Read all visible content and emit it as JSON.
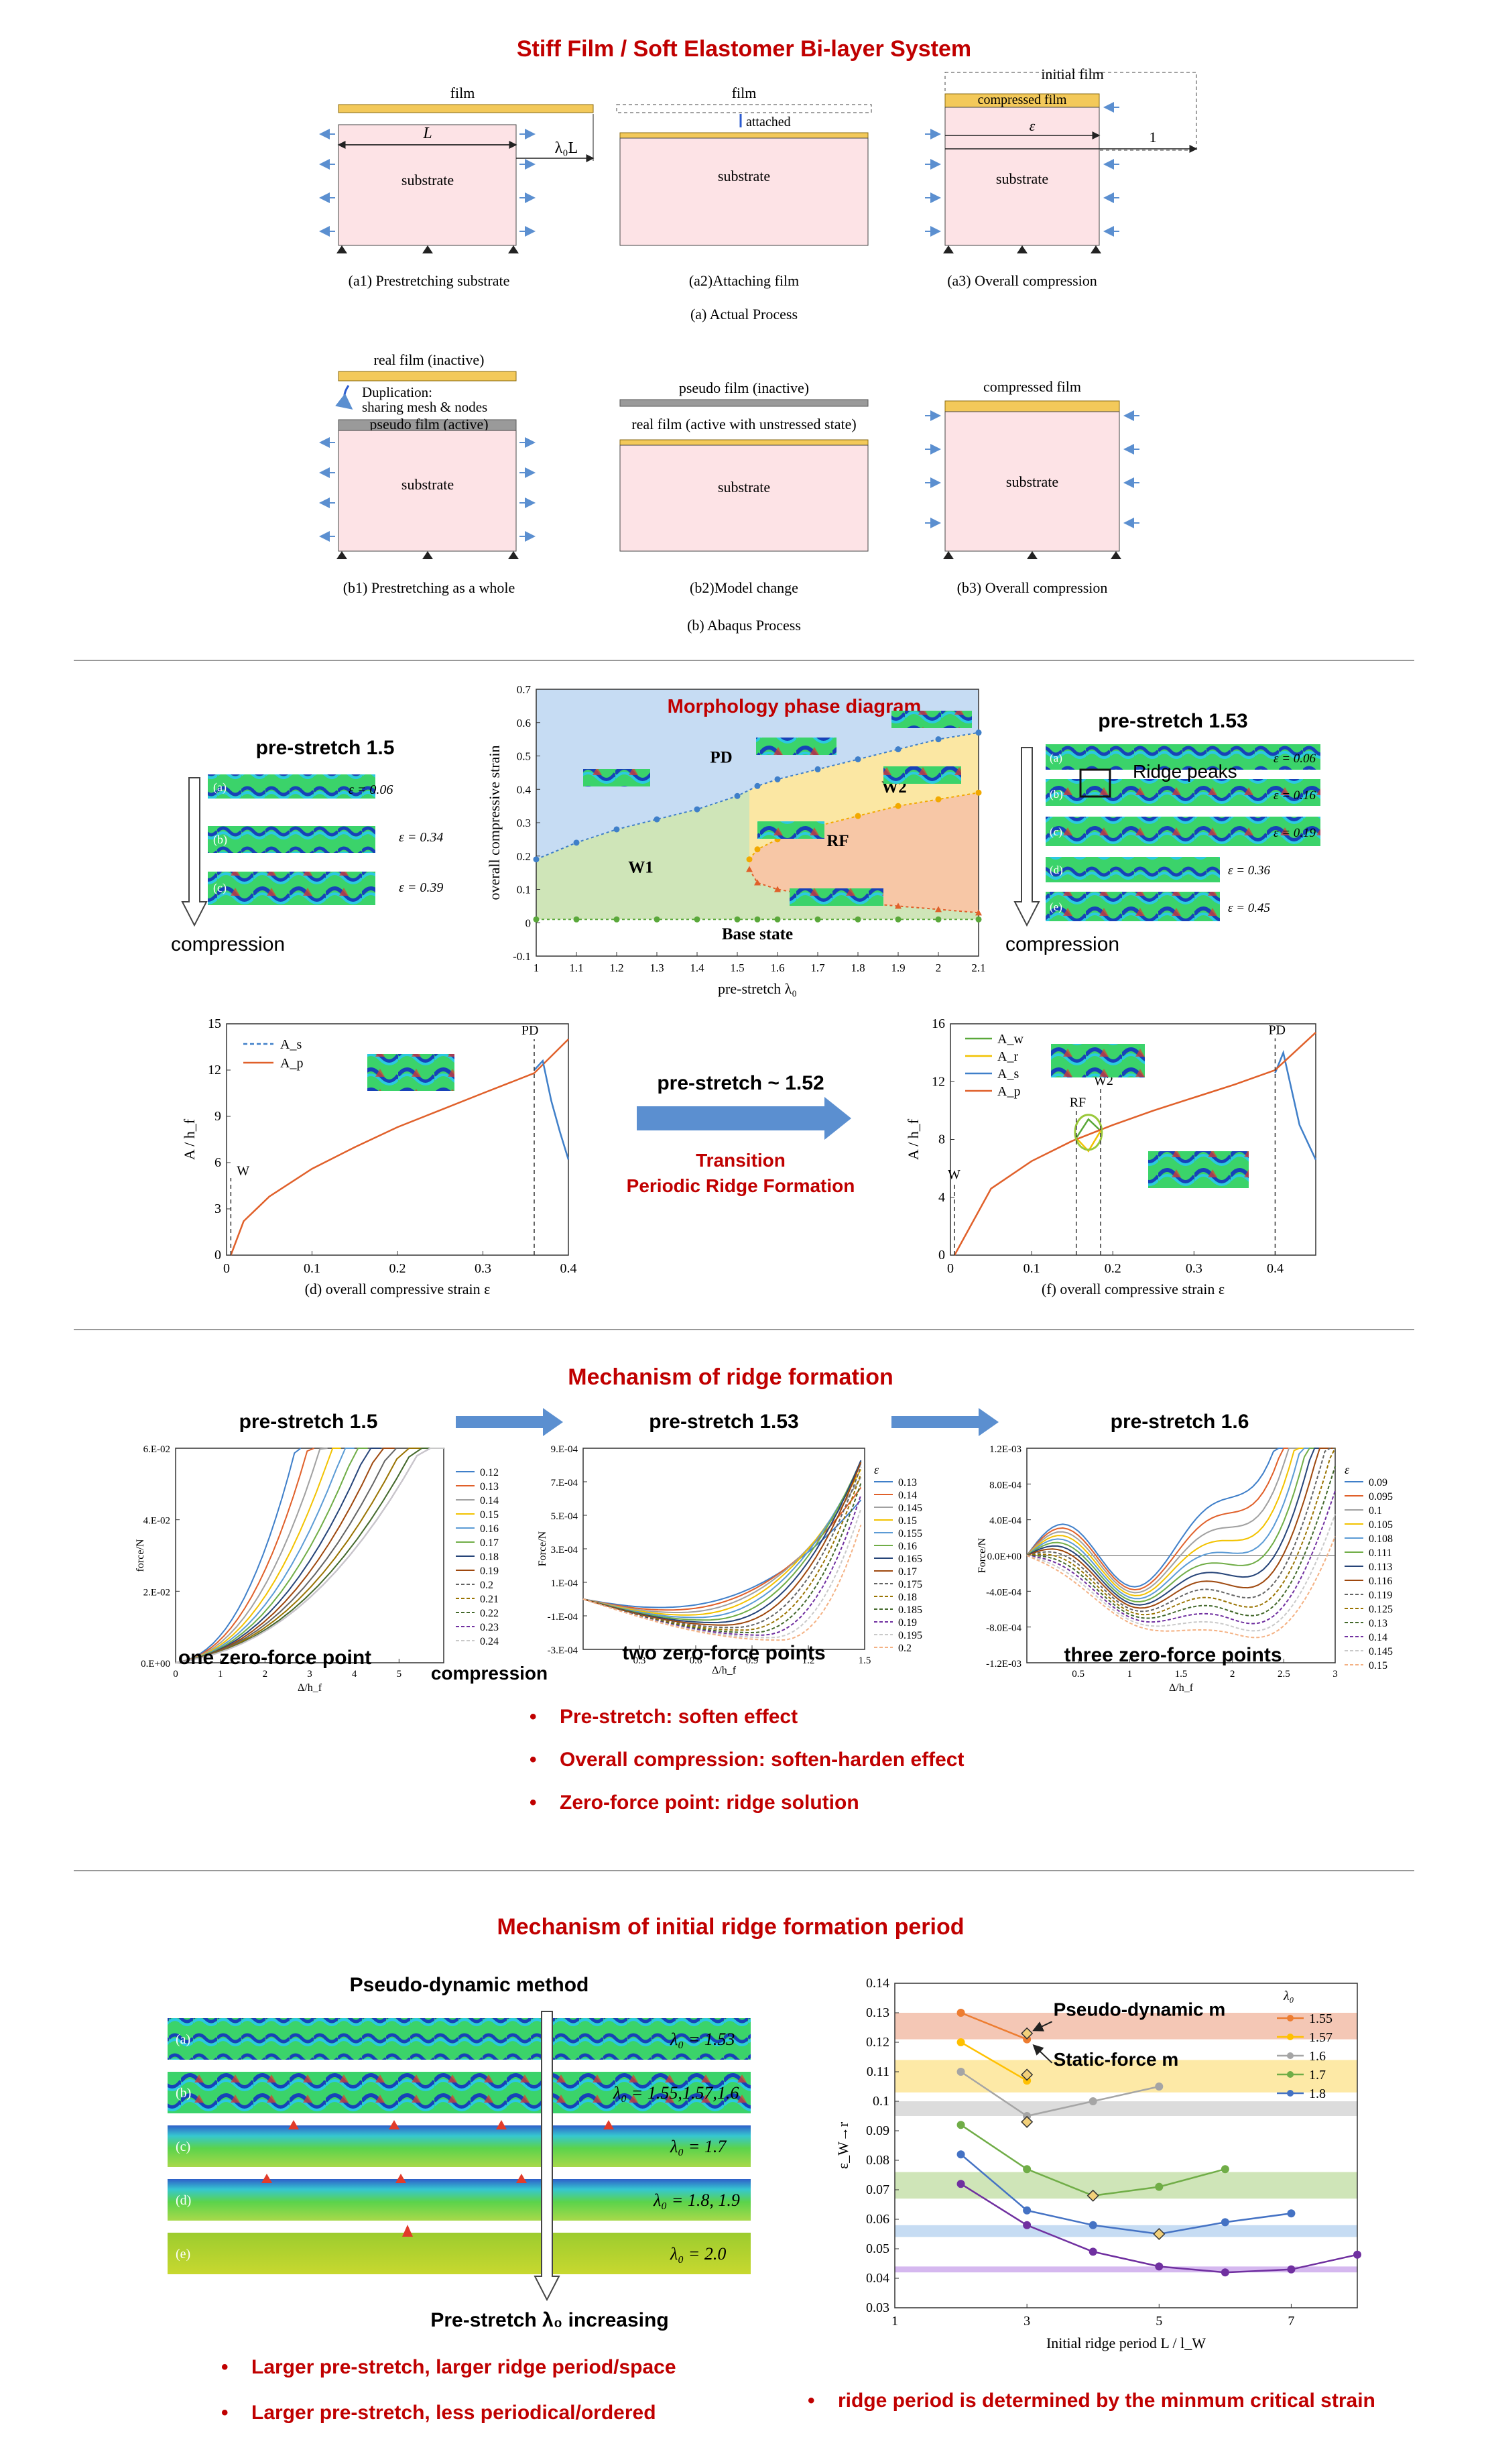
{
  "colors": {
    "title_red": "#c00000",
    "substrate_fill": "#fde3e6",
    "film_gold": "#f3c95a",
    "arrow_blue": "#5b8fd0",
    "phase_blue": "#c6dcf3",
    "phase_yellow": "#fbe7a3",
    "phase_green": "#cfe5b8",
    "phase_orange": "#f7c7a6",
    "curve_orange": "#e0602a",
    "curve_blue": "#3f7fc9",
    "purple": "#7a3fb5"
  },
  "section1": {
    "title": "Stiff Film / Soft Elastomer Bi-layer System",
    "a1": {
      "film": "film",
      "L": "L",
      "lambda": "λ₀L",
      "substrate": "substrate",
      "caption": "(a1) Prestretching substrate"
    },
    "a2": {
      "film": "film",
      "attached": "attached",
      "substrate": "substrate",
      "caption": "(a2)Attaching film"
    },
    "a3": {
      "initial": "initial film",
      "compressed": "compressed film",
      "eps": "ε",
      "one": "1",
      "substrate": "substrate",
      "caption": "(a3) Overall compression"
    },
    "caption_a": "(a) Actual Process",
    "b1": {
      "real": "real film (inactive)",
      "dup1": "Duplication:",
      "dup2": "sharing mesh & nodes",
      "pseudo": "pseudo  film (active)",
      "substrate": "substrate",
      "caption": "(b1) Prestretching as a whole"
    },
    "b2": {
      "pseudo": "pseudo  film (inactive)",
      "real": "real film (active with unstressed state)",
      "substrate": "substrate",
      "caption": "(b2)Model change"
    },
    "b3": {
      "compressed": "compressed film",
      "substrate": "substrate",
      "caption": "(b3) Overall compression"
    },
    "caption_b": "(b) Abaqus Process"
  },
  "section2": {
    "left_title": "pre-stretch 1.5",
    "left_labels": [
      "(a)",
      "(b)",
      "(c)"
    ],
    "left_eps": [
      "ε = 0.06",
      "ε = 0.34",
      "ε = 0.39"
    ],
    "compression": "compression",
    "right_title": "pre-stretch 1.53",
    "right_labels": [
      "(a)",
      "(b)",
      "(c)",
      "(d)",
      "(e)"
    ],
    "right_eps": [
      "ε = 0.06",
      "ε = 0.16",
      "ε = 0.19",
      "ε = 0.36",
      "ε = 0.45"
    ],
    "ridge_peaks": "Ridge peaks",
    "transition_top": "pre-stretch ~ 1.52",
    "transition_red1": "Transition",
    "transition_red2": "Periodic Ridge Formation"
  },
  "section3": {
    "title": "Mechanism of ridge formation",
    "panel_titles": [
      "pre-stretch 1.5",
      "pre-stretch 1.53",
      "pre-stretch 1.6"
    ],
    "captions": [
      "one zero-force point",
      "two zero-force points",
      "three zero-force points"
    ],
    "compression": "compression",
    "bullets": [
      "Pre-stretch: soften effect",
      "Overall compression: soften-harden effect",
      "Zero-force point: ridge solution"
    ]
  },
  "section4": {
    "title": "Mechanism of initial ridge formation period",
    "pd_title": "Pseudo-dynamic method",
    "strip_labels": [
      "(a)",
      "(b)",
      "(c)",
      "(d)",
      "(e)"
    ],
    "strip_lambdas": [
      "λ₀ = 1.53",
      "λ₀ = 1.55,1.57,1.6",
      "λ₀ = 1.7",
      "λ₀ = 1.8, 1.9",
      "λ₀ = 2.0"
    ],
    "increasing": "Pre-stretch λ₀ increasing",
    "bullets_left": [
      "Larger pre-stretch, larger ridge period/space",
      "Larger pre-stretch, less periodical/ordered"
    ],
    "bullet_right": "ridge period is determined by the minmum critical strain"
  },
  "chart_data": [
    {
      "id": "phase_diagram",
      "type": "scatter",
      "title": "Morphology phase diagram",
      "xlabel": "pre-stretch λ₀",
      "ylabel": "overall compressive strain",
      "xlim": [
        1,
        2.1
      ],
      "ylim": [
        -0.1,
        0.7
      ],
      "xticks": [
        "1",
        "1.1",
        "1.2",
        "1.3",
        "1.4",
        "1.5",
        "1.6",
        "1.7",
        "1.8",
        "1.9",
        "2",
        "2.1"
      ],
      "yticks": [
        "-0.1",
        "0",
        "0.1",
        "0.2",
        "0.3",
        "0.4",
        "0.5",
        "0.6",
        "0.7"
      ],
      "regions": [
        "PD",
        "W1",
        "W2",
        "RF",
        "Base state"
      ],
      "series": [
        {
          "name": "PD boundary",
          "x": [
            1.0,
            1.1,
            1.2,
            1.3,
            1.4,
            1.5,
            1.55,
            1.6,
            1.7,
            1.8,
            1.9,
            2.0,
            2.1
          ],
          "y": [
            0.19,
            0.24,
            0.28,
            0.31,
            0.34,
            0.38,
            0.41,
            0.43,
            0.46,
            0.49,
            0.52,
            0.55,
            0.57
          ]
        },
        {
          "name": "W2 lower",
          "x": [
            1.53,
            1.55,
            1.6,
            1.7,
            1.8,
            1.9,
            2.0,
            2.1
          ],
          "y": [
            0.19,
            0.22,
            0.25,
            0.29,
            0.32,
            0.35,
            0.37,
            0.39
          ]
        },
        {
          "name": "RF lower",
          "x": [
            1.53,
            1.55,
            1.6,
            1.7,
            1.8,
            1.9,
            2.0,
            2.1
          ],
          "y": [
            0.16,
            0.12,
            0.1,
            0.08,
            0.06,
            0.05,
            0.04,
            0.03
          ]
        },
        {
          "name": "Base",
          "x": [
            1.0,
            1.1,
            1.2,
            1.3,
            1.4,
            1.5,
            1.55,
            1.6,
            1.7,
            1.8,
            1.9,
            2.0,
            2.1
          ],
          "y": [
            0.01,
            0.01,
            0.01,
            0.01,
            0.01,
            0.01,
            0.01,
            0.01,
            0.01,
            0.01,
            0.01,
            0.01,
            0.01
          ]
        }
      ]
    },
    {
      "id": "amplitude_d",
      "type": "line",
      "xlabel": "(d) overall compressive strain ε",
      "ylabel": "A / h_f",
      "xlim": [
        0,
        0.4
      ],
      "ylim": [
        0,
        15
      ],
      "xticks": [
        "0",
        "0.1",
        "0.2",
        "0.3",
        "0.4"
      ],
      "yticks": [
        "0",
        "3",
        "6",
        "9",
        "12",
        "15"
      ],
      "annotations": [
        "W",
        "PD"
      ],
      "series": [
        {
          "name": "A_s",
          "x": [
            0.36,
            0.37,
            0.38,
            0.39,
            0.4
          ],
          "y": [
            12.0,
            12.6,
            10.0,
            8.0,
            6.2
          ]
        },
        {
          "name": "A_p",
          "x": [
            0.005,
            0.02,
            0.05,
            0.1,
            0.15,
            0.2,
            0.25,
            0.3,
            0.36,
            0.4
          ],
          "y": [
            0.0,
            2.2,
            3.8,
            5.6,
            7.0,
            8.3,
            9.4,
            10.5,
            11.8,
            14.0
          ]
        }
      ]
    },
    {
      "id": "amplitude_f",
      "type": "line",
      "xlabel": "(f) overall compressive strain ε",
      "ylabel": "A / h_f",
      "xlim": [
        0,
        0.45
      ],
      "ylim": [
        0,
        16
      ],
      "xticks": [
        "0",
        "0.1",
        "0.2",
        "0.3",
        "0.4"
      ],
      "yticks": [
        "0",
        "4",
        "8",
        "12",
        "16"
      ],
      "annotations": [
        "W",
        "RF",
        "W2",
        "PD"
      ],
      "series": [
        {
          "name": "A_w",
          "x": [
            0.155,
            0.17,
            0.185
          ],
          "y": [
            8.1,
            9.4,
            8.6
          ]
        },
        {
          "name": "A_r",
          "x": [
            0.155,
            0.17,
            0.185
          ],
          "y": [
            8.1,
            7.2,
            8.6
          ]
        },
        {
          "name": "A_s",
          "x": [
            0.4,
            0.41,
            0.43,
            0.45
          ],
          "y": [
            12.6,
            14.0,
            9.0,
            6.6
          ]
        },
        {
          "name": "A_p",
          "x": [
            0.005,
            0.05,
            0.1,
            0.15,
            0.2,
            0.25,
            0.3,
            0.35,
            0.4,
            0.45
          ],
          "y": [
            0.0,
            4.6,
            6.5,
            7.9,
            9.0,
            10.0,
            10.9,
            11.8,
            12.8,
            15.4
          ]
        }
      ]
    },
    {
      "id": "force_1_5",
      "type": "line",
      "title": "pre-stretch 1.5",
      "xlabel": "Δ/h_f",
      "ylabel": "force/N",
      "xlim": [
        0,
        6
      ],
      "ylim": [
        0,
        0.06
      ],
      "xticks": [
        "0",
        "1",
        "2",
        "3",
        "4",
        "5"
      ],
      "yticks": [
        "0.E+00",
        "2.E-02",
        "4.E-02",
        "6.E-02"
      ],
      "legend_title": "",
      "series": [
        {
          "name": "0.12",
          "end_x": 2.8
        },
        {
          "name": "0.13",
          "end_x": 3.1
        },
        {
          "name": "0.14",
          "end_x": 3.4
        },
        {
          "name": "0.15",
          "end_x": 3.7
        },
        {
          "name": "0.16",
          "end_x": 4.0
        },
        {
          "name": "0.17",
          "end_x": 4.3
        },
        {
          "name": "0.18",
          "end_x": 4.6
        },
        {
          "name": "0.19",
          "end_x": 4.9
        },
        {
          "name": "0.2",
          "end_x": 5.2
        },
        {
          "name": "0.21",
          "end_x": 5.5
        },
        {
          "name": "0.22",
          "end_x": 5.8
        },
        {
          "name": "0.23",
          "end_x": 6.0
        },
        {
          "name": "0.24",
          "end_x": 6.0
        }
      ]
    },
    {
      "id": "force_1_53",
      "type": "line",
      "title": "pre-stretch 1.53",
      "xlabel": "Δ/h_f",
      "ylabel": "Force/N",
      "xlim": [
        0,
        1.5
      ],
      "ylim": [
        -0.0003,
        0.0009
      ],
      "xticks": [
        "0.3",
        "0.6",
        "0.9",
        "1.2",
        "1.5"
      ],
      "yticks": [
        "-3.E-04",
        "-1.E-04",
        "1.E-04",
        "3.E-04",
        "5.E-04",
        "7.E-04",
        "9.E-04"
      ],
      "legend_title": "ε",
      "series": [
        {
          "name": "0.13"
        },
        {
          "name": "0.14"
        },
        {
          "name": "0.145"
        },
        {
          "name": "0.15"
        },
        {
          "name": "0.155"
        },
        {
          "name": "0.16"
        },
        {
          "name": "0.165"
        },
        {
          "name": "0.17"
        },
        {
          "name": "0.175"
        },
        {
          "name": "0.18"
        },
        {
          "name": "0.185"
        },
        {
          "name": "0.19"
        },
        {
          "name": "0.195"
        },
        {
          "name": "0.2"
        }
      ]
    },
    {
      "id": "force_1_6",
      "type": "line",
      "title": "pre-stretch 1.6",
      "xlabel": "Δ/h_f",
      "ylabel": "Force/N",
      "xlim": [
        0,
        3
      ],
      "ylim": [
        -0.0012,
        0.0012
      ],
      "xticks": [
        "0.5",
        "1",
        "1.5",
        "2",
        "2.5",
        "3"
      ],
      "yticks": [
        "-1.2E-03",
        "-8.0E-04",
        "-4.0E-04",
        "0.0E+00",
        "4.0E-04",
        "8.0E-04",
        "1.2E-03"
      ],
      "legend_title": "ε",
      "series": [
        {
          "name": "0.09"
        },
        {
          "name": "0.095"
        },
        {
          "name": "0.1"
        },
        {
          "name": "0.105"
        },
        {
          "name": "0.108"
        },
        {
          "name": "0.111"
        },
        {
          "name": "0.113"
        },
        {
          "name": "0.116"
        },
        {
          "name": "0.119"
        },
        {
          "name": "0.125"
        },
        {
          "name": "0.13"
        },
        {
          "name": "0.14"
        },
        {
          "name": "0.145"
        },
        {
          "name": "0.15"
        }
      ]
    },
    {
      "id": "critical_strain",
      "type": "line",
      "xlabel": "Initial ridge period L / l_W",
      "ylabel": "ε_W→r",
      "xlim": [
        1,
        8
      ],
      "ylim": [
        0.03,
        0.14
      ],
      "xticks": [
        "1",
        "3",
        "5",
        "7"
      ],
      "yticks": [
        "0.03",
        "0.04",
        "0.05",
        "0.06",
        "0.07",
        "0.08",
        "0.09",
        "0.1",
        "0.11",
        "0.12",
        "0.13",
        "0.14"
      ],
      "legend_title": "λ₀",
      "annotations": [
        "Pseudo-dynamic m",
        "Static-force m"
      ],
      "series": [
        {
          "name": "1.55",
          "x": [
            2,
            3
          ],
          "y": [
            0.13,
            0.121
          ]
        },
        {
          "name": "1.57",
          "x": [
            2,
            3
          ],
          "y": [
            0.12,
            0.107
          ]
        },
        {
          "name": "1.6",
          "x": [
            2,
            3,
            4,
            5
          ],
          "y": [
            0.11,
            0.095,
            0.1,
            0.105
          ]
        },
        {
          "name": "1.7",
          "x": [
            2,
            3,
            4,
            5,
            6
          ],
          "y": [
            0.092,
            0.077,
            0.068,
            0.071,
            0.077
          ]
        },
        {
          "name": "1.8",
          "x": [
            2,
            3,
            4,
            5,
            6,
            7
          ],
          "y": [
            0.082,
            0.063,
            0.058,
            0.055,
            0.059,
            0.062
          ]
        },
        {
          "name": "",
          "x": [
            2,
            3,
            4,
            5,
            6,
            7,
            8
          ],
          "y": [
            0.072,
            0.058,
            0.049,
            0.044,
            0.042,
            0.043,
            0.048
          ]
        }
      ]
    }
  ]
}
